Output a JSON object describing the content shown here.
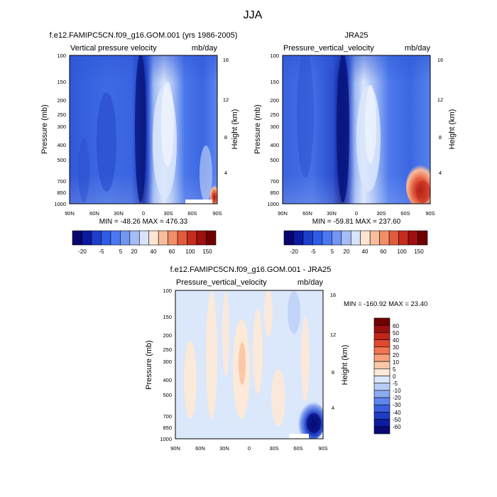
{
  "figure": {
    "title": "JJA"
  },
  "chart_data": [
    {
      "type": "heatmap",
      "title": "f.e12.FAMIPC5CN.f09_g16.GOM.001 (yrs 1986-2005)",
      "subtitle_left": "Vertical pressure velocity",
      "subtitle_right": "mb/day",
      "ylabel": "Pressure (mb)",
      "ylabel_right": "Height (km)",
      "x_ticks": [
        "90N",
        "60N",
        "30N",
        "0",
        "30S",
        "60S",
        "90S"
      ],
      "x_values": [
        90,
        60,
        30,
        0,
        -30,
        -60,
        -90
      ],
      "xlim": [
        90,
        -90
      ],
      "y_ticks": [
        "100",
        "150",
        "200",
        "250",
        "300",
        "400",
        "500",
        "700",
        "850",
        "1000"
      ],
      "y_values": [
        100,
        150,
        200,
        250,
        300,
        400,
        500,
        700,
        850,
        1000
      ],
      "ylim": [
        100,
        1000
      ],
      "log_y": true,
      "right_ticks": [
        "16",
        "12",
        "8",
        "4"
      ],
      "right_values": [
        16,
        12,
        8,
        4
      ],
      "stats": "MIN = -48.26  MAX = 476.33",
      "colorbar_labels": [
        "-20",
        "-5",
        "5",
        "20",
        "40",
        "60",
        "100",
        "150"
      ]
    },
    {
      "type": "heatmap",
      "title": "JRA25",
      "subtitle_left": "Pressure_vertical_velocity",
      "subtitle_right": "mb/day",
      "ylabel": "Pressure (mb)",
      "ylabel_right": "Height (km)",
      "x_ticks": [
        "90N",
        "60N",
        "30N",
        "0",
        "30S",
        "60S",
        "90S"
      ],
      "x_values": [
        90,
        60,
        30,
        0,
        -30,
        -60,
        -90
      ],
      "xlim": [
        90,
        -90
      ],
      "y_ticks": [
        "100",
        "150",
        "200",
        "250",
        "300",
        "400",
        "500",
        "700",
        "850",
        "1000"
      ],
      "y_values": [
        100,
        150,
        200,
        250,
        300,
        400,
        500,
        700,
        850,
        1000
      ],
      "ylim": [
        100,
        1000
      ],
      "log_y": true,
      "right_ticks": [
        "16",
        "12",
        "8",
        "4"
      ],
      "right_values": [
        16,
        12,
        8,
        4
      ],
      "stats": "MIN = -59.81  MAX = 237.60",
      "colorbar_labels": [
        "-20",
        "-5",
        "5",
        "20",
        "40",
        "60",
        "100",
        "150"
      ]
    },
    {
      "type": "heatmap",
      "title": "f.e12.FAMIPC5CN.f09_g16.GOM.001 - JRA25",
      "subtitle_left": "Pressure_vertical_velocity",
      "subtitle_right": "mb/day",
      "ylabel": "Pressure (mb)",
      "ylabel_right": "Height (km)",
      "x_ticks": [
        "90N",
        "60N",
        "30N",
        "0",
        "30S",
        "60S",
        "90S"
      ],
      "x_values": [
        90,
        60,
        30,
        0,
        -30,
        -60,
        -90
      ],
      "xlim": [
        90,
        -90
      ],
      "y_ticks": [
        "100",
        "150",
        "200",
        "250",
        "300",
        "400",
        "500",
        "700",
        "850",
        "1000"
      ],
      "y_values": [
        100,
        150,
        200,
        250,
        300,
        400,
        500,
        700,
        850,
        1000
      ],
      "ylim": [
        100,
        1000
      ],
      "log_y": true,
      "right_ticks": [
        "16",
        "12",
        "8",
        "4"
      ],
      "right_values": [
        16,
        12,
        8,
        4
      ],
      "stats": "MIN = -160.92  MAX =  23.40",
      "colorbar_labels": [
        "60",
        "50",
        "40",
        "30",
        "20",
        "10",
        "5",
        "0",
        "-5",
        "-10",
        "-20",
        "-30",
        "-40",
        "-50",
        "-60"
      ]
    }
  ],
  "colors": {
    "top_colorbar": [
      "#08066e",
      "#0b1aa2",
      "#1d3fcc",
      "#2e5ce6",
      "#4a78f0",
      "#7196f3",
      "#a4bdf6",
      "#d6e3fa",
      "#fde5d2",
      "#f8bd9c",
      "#f08f66",
      "#e35b3d",
      "#c52c1e",
      "#9e1010",
      "#700000"
    ],
    "diff_colorbar": [
      "#700000",
      "#9a0f0f",
      "#c0251a",
      "#df4a2f",
      "#f07550",
      "#f6a07c",
      "#fac8a8",
      "#fde9d7",
      "#dbe7fb",
      "#b6ccf6",
      "#8cabf2",
      "#5f86ee",
      "#3a60e0",
      "#1f3cc6",
      "#0d1ca0",
      "#060a72"
    ]
  }
}
